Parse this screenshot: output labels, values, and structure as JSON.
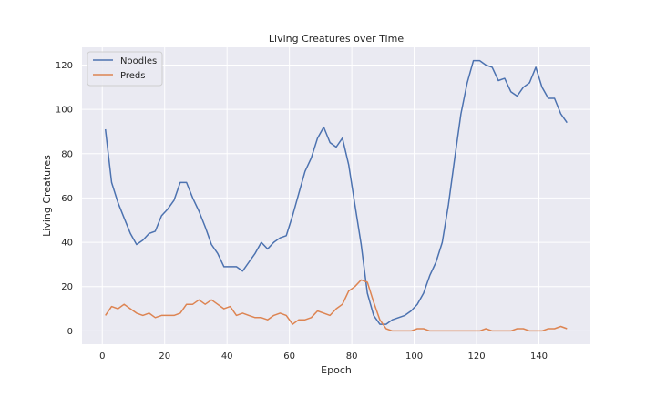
{
  "chart_data": {
    "type": "line",
    "title": "Living Creatures over Time",
    "xlabel": "Epoch",
    "ylabel": "Living Creatures",
    "xlim": [
      -6.5,
      156.5
    ],
    "ylim": [
      -6,
      128
    ],
    "xticks": [
      0,
      20,
      40,
      60,
      80,
      100,
      120,
      140
    ],
    "yticks": [
      0,
      20,
      40,
      60,
      80,
      100,
      120
    ],
    "grid": true,
    "legend_position": "upper-left",
    "series": [
      {
        "name": "Noodles",
        "color": "#4c72b0",
        "x": [
          1,
          3,
          5,
          7,
          9,
          11,
          13,
          15,
          17,
          19,
          21,
          23,
          25,
          27,
          29,
          31,
          33,
          35,
          37,
          39,
          41,
          43,
          45,
          47,
          49,
          51,
          53,
          55,
          57,
          59,
          61,
          63,
          65,
          67,
          69,
          71,
          73,
          75,
          77,
          79,
          81,
          83,
          85,
          87,
          89,
          91,
          93,
          95,
          97,
          99,
          101,
          103,
          105,
          107,
          109,
          111,
          113,
          115,
          117,
          119,
          121,
          123,
          125,
          127,
          129,
          131,
          133,
          135,
          137,
          139,
          141,
          143,
          145,
          147,
          149
        ],
        "y": [
          91,
          67,
          58,
          51,
          44,
          39,
          41,
          44,
          45,
          52,
          55,
          59,
          67,
          67,
          60,
          54,
          47,
          39,
          35,
          29,
          29,
          29,
          27,
          31,
          35,
          40,
          37,
          40,
          42,
          43,
          52,
          62,
          72,
          78,
          87,
          92,
          85,
          83,
          87,
          75,
          57,
          39,
          17,
          7,
          3,
          3,
          5,
          6,
          7,
          9,
          12,
          17,
          25,
          31,
          40,
          57,
          78,
          98,
          112,
          122,
          122,
          120,
          119,
          113,
          114,
          108,
          106,
          110,
          112,
          119,
          110,
          105,
          105,
          98,
          94
        ]
      },
      {
        "name": "Preds",
        "color": "#dd8452",
        "x": [
          1,
          3,
          5,
          7,
          9,
          11,
          13,
          15,
          17,
          19,
          21,
          23,
          25,
          27,
          29,
          31,
          33,
          35,
          37,
          39,
          41,
          43,
          45,
          47,
          49,
          51,
          53,
          55,
          57,
          59,
          61,
          63,
          65,
          67,
          69,
          71,
          73,
          75,
          77,
          79,
          81,
          83,
          85,
          87,
          89,
          91,
          93,
          95,
          97,
          99,
          101,
          103,
          105,
          107,
          109,
          111,
          113,
          115,
          117,
          119,
          121,
          123,
          125,
          127,
          129,
          131,
          133,
          135,
          137,
          139,
          141,
          143,
          145,
          147,
          149
        ],
        "y": [
          7,
          11,
          10,
          12,
          10,
          8,
          7,
          8,
          6,
          7,
          7,
          7,
          8,
          12,
          12,
          14,
          12,
          14,
          12,
          10,
          11,
          7,
          8,
          7,
          6,
          6,
          5,
          7,
          8,
          7,
          3,
          5,
          5,
          6,
          9,
          8,
          7,
          10,
          12,
          18,
          20,
          23,
          22,
          13,
          5,
          1,
          0,
          0,
          0,
          0,
          1,
          1,
          0,
          0,
          0,
          0,
          0,
          0,
          0,
          0,
          0,
          1,
          0,
          0,
          0,
          0,
          1,
          1,
          0,
          0,
          0,
          1,
          1,
          2,
          1
        ]
      }
    ]
  }
}
